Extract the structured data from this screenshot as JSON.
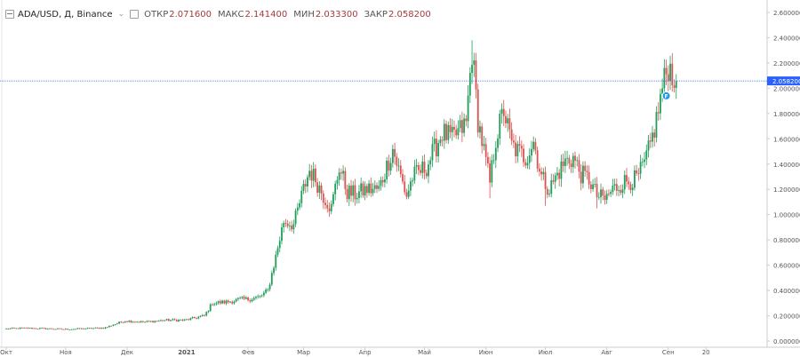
{
  "legend": {
    "symbol_title": "ADA/USD, Д, Binance",
    "open_label": "ОТКР",
    "open_value": "2.071600",
    "high_label": "МАКС",
    "high_value": "2.141400",
    "low_label": "МИН",
    "low_value": "2.033300",
    "close_label": "ЗАКР",
    "close_value": "2.058200"
  },
  "colors": {
    "up": "#26a69a",
    "up_fill": "#1e9e5a",
    "down": "#d9534f",
    "price_line": "#2962ff",
    "price_label_bg": "#2962ff",
    "grid_text": "#555555",
    "axis_line": "#c9cdd2"
  },
  "icons": {
    "collapse": "minus-square-icon",
    "dropdown": "chevron-down-icon",
    "settings": "square-icon",
    "marker": "flag-circle-icon"
  },
  "chart_data": {
    "type": "candlestick",
    "y_axis_side": "right",
    "ylim": [
      0.0,
      2.6
    ],
    "yticks": [
      "2.600000",
      "2.400000",
      "2.200000",
      "2.000000",
      "1.800000",
      "1.600000",
      "1.400000",
      "1.200000",
      "1.000000",
      "0.800000",
      "0.600000",
      "0.400000",
      "0.200000",
      "0.000000"
    ],
    "current_price": "2.058200",
    "current_price_value": 2.0582,
    "x_months": [
      "Окт",
      "Ноя",
      "Дек",
      "2021",
      "Фев",
      "Мар",
      "Апр",
      "Май",
      "Июн",
      "Июл",
      "Авг",
      "Сен",
      "20"
    ],
    "marker_label": "F",
    "marker_value": 1.94,
    "anchors": [
      [
        0,
        0.097
      ],
      [
        10,
        0.102
      ],
      [
        20,
        0.098
      ],
      [
        30,
        0.093
      ],
      [
        40,
        0.098
      ],
      [
        50,
        0.105
      ],
      [
        55,
        0.135
      ],
      [
        60,
        0.16
      ],
      [
        70,
        0.15
      ],
      [
        80,
        0.165
      ],
      [
        90,
        0.165
      ],
      [
        100,
        0.2
      ],
      [
        104,
        0.3
      ],
      [
        112,
        0.31
      ],
      [
        118,
        0.33
      ],
      [
        122,
        0.33
      ],
      [
        128,
        0.35
      ],
      [
        132,
        0.4
      ],
      [
        135,
        0.6
      ],
      [
        140,
        0.95
      ],
      [
        145,
        0.92
      ],
      [
        150,
        1.2
      ],
      [
        153,
        1.35
      ],
      [
        156,
        1.28
      ],
      [
        160,
        1.15
      ],
      [
        164,
        1.05
      ],
      [
        168,
        1.38
      ],
      [
        172,
        1.18
      ],
      [
        176,
        1.16
      ],
      [
        182,
        1.2
      ],
      [
        188,
        1.2
      ],
      [
        195,
        1.52
      ],
      [
        199,
        1.3
      ],
      [
        202,
        1.15
      ],
      [
        205,
        1.3
      ],
      [
        212,
        1.38
      ],
      [
        220,
        1.65
      ],
      [
        225,
        1.6
      ],
      [
        232,
        1.72
      ],
      [
        235,
        2.3
      ],
      [
        238,
        1.75
      ],
      [
        241,
        1.5
      ],
      [
        244,
        1.25
      ],
      [
        247,
        1.6
      ],
      [
        251,
        1.83
      ],
      [
        255,
        1.55
      ],
      [
        258,
        1.5
      ],
      [
        262,
        1.45
      ],
      [
        266,
        1.58
      ],
      [
        270,
        1.3
      ],
      [
        274,
        1.2
      ],
      [
        278,
        1.32
      ],
      [
        282,
        1.42
      ],
      [
        286,
        1.45
      ],
      [
        290,
        1.32
      ],
      [
        294,
        1.28
      ],
      [
        298,
        1.15
      ],
      [
        302,
        1.12
      ],
      [
        306,
        1.2
      ],
      [
        312,
        1.26
      ],
      [
        318,
        1.28
      ],
      [
        322,
        1.4
      ],
      [
        325,
        1.55
      ],
      [
        328,
        1.75
      ],
      [
        331,
        2.0
      ],
      [
        334,
        2.18
      ],
      [
        336,
        2.12
      ],
      [
        338,
        2.06
      ]
    ]
  }
}
